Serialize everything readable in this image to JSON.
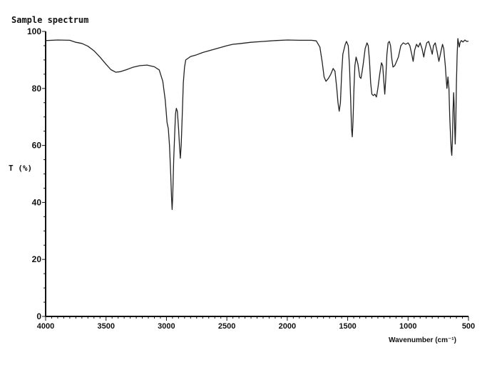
{
  "chart_data": {
    "type": "line",
    "title": "Sample spectrum",
    "xlabel": "Wavenumber (cm⁻¹)",
    "ylabel": "T (%)",
    "xlim": [
      4000,
      500
    ],
    "ylim": [
      0,
      100
    ],
    "x_reversed": true,
    "grid": false,
    "x_ticks": [
      4000,
      3500,
      3000,
      2500,
      2000,
      1500,
      1000,
      500
    ],
    "y_ticks": [
      0,
      20,
      40,
      60,
      80,
      100
    ],
    "x_tick_labels": [
      "4000",
      "3500",
      "3000",
      "2500",
      "2000",
      "1500",
      "1000",
      "500"
    ],
    "y_tick_labels": [
      "0",
      "20",
      "40",
      "60",
      "80",
      "100"
    ],
    "series": [
      {
        "color": "#222222",
        "points": [
          [
            4000,
            96.8
          ],
          [
            3900,
            97.0
          ],
          [
            3800,
            96.9
          ],
          [
            3750,
            96.2
          ],
          [
            3700,
            95.8
          ],
          [
            3650,
            94.8
          ],
          [
            3600,
            93.2
          ],
          [
            3550,
            91.0
          ],
          [
            3500,
            88.5
          ],
          [
            3460,
            86.6
          ],
          [
            3420,
            85.7
          ],
          [
            3380,
            85.9
          ],
          [
            3330,
            86.6
          ],
          [
            3280,
            87.4
          ],
          [
            3220,
            88.0
          ],
          [
            3160,
            88.2
          ],
          [
            3100,
            87.6
          ],
          [
            3060,
            86.5
          ],
          [
            3030,
            82.5
          ],
          [
            3010,
            76.0
          ],
          [
            2995,
            68.0
          ],
          [
            2985,
            66.0
          ],
          [
            2975,
            60.0
          ],
          [
            2965,
            50.0
          ],
          [
            2958,
            42.0
          ],
          [
            2953,
            37.5
          ],
          [
            2948,
            42.0
          ],
          [
            2940,
            55.0
          ],
          [
            2932,
            63.5
          ],
          [
            2925,
            71.0
          ],
          [
            2918,
            73.0
          ],
          [
            2910,
            72.0
          ],
          [
            2900,
            66.0
          ],
          [
            2892,
            60.0
          ],
          [
            2885,
            55.5
          ],
          [
            2878,
            60.0
          ],
          [
            2870,
            70.0
          ],
          [
            2860,
            82.0
          ],
          [
            2850,
            87.5
          ],
          [
            2840,
            90.0
          ],
          [
            2800,
            91.2
          ],
          [
            2750,
            91.8
          ],
          [
            2700,
            92.6
          ],
          [
            2600,
            93.8
          ],
          [
            2500,
            95.0
          ],
          [
            2450,
            95.5
          ],
          [
            2400,
            95.7
          ],
          [
            2300,
            96.2
          ],
          [
            2200,
            96.5
          ],
          [
            2100,
            96.8
          ],
          [
            2000,
            97.0
          ],
          [
            1900,
            96.9
          ],
          [
            1800,
            96.9
          ],
          [
            1760,
            96.7
          ],
          [
            1730,
            94.5
          ],
          [
            1710,
            89.0
          ],
          [
            1695,
            84.0
          ],
          [
            1680,
            82.5
          ],
          [
            1660,
            83.5
          ],
          [
            1640,
            85.0
          ],
          [
            1620,
            87.0
          ],
          [
            1605,
            86.0
          ],
          [
            1590,
            80.0
          ],
          [
            1580,
            75.0
          ],
          [
            1570,
            72.0
          ],
          [
            1560,
            75.0
          ],
          [
            1550,
            85.0
          ],
          [
            1540,
            92.0
          ],
          [
            1520,
            95.5
          ],
          [
            1510,
            96.5
          ],
          [
            1495,
            95.0
          ],
          [
            1485,
            88.0
          ],
          [
            1475,
            76.0
          ],
          [
            1468,
            66.0
          ],
          [
            1462,
            63.0
          ],
          [
            1456,
            68.0
          ],
          [
            1448,
            80.0
          ],
          [
            1440,
            88.0
          ],
          [
            1430,
            91.0
          ],
          [
            1415,
            88.5
          ],
          [
            1400,
            84.0
          ],
          [
            1390,
            83.5
          ],
          [
            1380,
            86.0
          ],
          [
            1370,
            89.0
          ],
          [
            1355,
            94.0
          ],
          [
            1340,
            96.0
          ],
          [
            1330,
            95.0
          ],
          [
            1320,
            90.0
          ],
          [
            1310,
            82.0
          ],
          [
            1300,
            78.0
          ],
          [
            1288,
            77.5
          ],
          [
            1275,
            78.0
          ],
          [
            1262,
            77.0
          ],
          [
            1250,
            80.0
          ],
          [
            1235,
            85.0
          ],
          [
            1220,
            89.0
          ],
          [
            1210,
            88.0
          ],
          [
            1200,
            82.0
          ],
          [
            1193,
            78.0
          ],
          [
            1185,
            83.0
          ],
          [
            1175,
            92.0
          ],
          [
            1165,
            96.0
          ],
          [
            1155,
            96.5
          ],
          [
            1145,
            95.0
          ],
          [
            1135,
            90.5
          ],
          [
            1125,
            87.5
          ],
          [
            1110,
            88.0
          ],
          [
            1095,
            89.5
          ],
          [
            1080,
            91.0
          ],
          [
            1060,
            95.0
          ],
          [
            1040,
            96.0
          ],
          [
            1020,
            95.5
          ],
          [
            1000,
            96.0
          ],
          [
            985,
            95.0
          ],
          [
            970,
            92.0
          ],
          [
            958,
            89.5
          ],
          [
            945,
            93.5
          ],
          [
            930,
            95.5
          ],
          [
            915,
            94.5
          ],
          [
            900,
            96.0
          ],
          [
            885,
            94.0
          ],
          [
            870,
            91.0
          ],
          [
            860,
            93.5
          ],
          [
            845,
            96.0
          ],
          [
            830,
            96.5
          ],
          [
            815,
            94.5
          ],
          [
            800,
            92.0
          ],
          [
            790,
            95.0
          ],
          [
            775,
            96.0
          ],
          [
            760,
            93.0
          ],
          [
            745,
            89.5
          ],
          [
            730,
            92.5
          ],
          [
            715,
            95.5
          ],
          [
            705,
            94.0
          ],
          [
            692,
            88.0
          ],
          [
            685,
            83.5
          ],
          [
            678,
            80.0
          ],
          [
            670,
            84.0
          ],
          [
            662,
            80.0
          ],
          [
            655,
            70.0
          ],
          [
            648,
            63.0
          ],
          [
            642,
            58.0
          ],
          [
            638,
            56.5
          ],
          [
            633,
            62.0
          ],
          [
            628,
            72.0
          ],
          [
            623,
            78.5
          ],
          [
            619,
            75.0
          ],
          [
            614,
            66.0
          ],
          [
            610,
            60.5
          ],
          [
            605,
            68.0
          ],
          [
            600,
            82.0
          ],
          [
            594,
            92.0
          ],
          [
            588,
            97.5
          ],
          [
            582,
            96.0
          ],
          [
            576,
            94.5
          ],
          [
            570,
            96.0
          ],
          [
            560,
            96.8
          ],
          [
            545,
            96.3
          ],
          [
            530,
            97.0
          ],
          [
            515,
            96.5
          ],
          [
            500,
            96.6
          ]
        ]
      }
    ]
  }
}
